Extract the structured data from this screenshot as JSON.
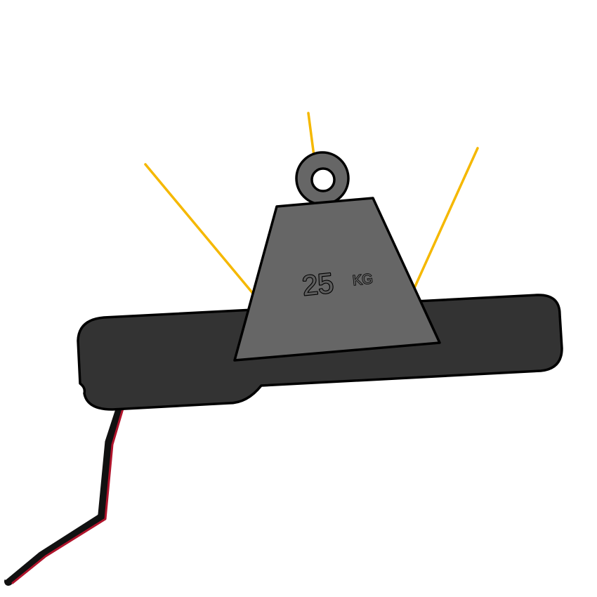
{
  "weight": {
    "number": "25",
    "unit": "KG"
  },
  "colors": {
    "background": "#ffffff",
    "sensor_body": "#333333",
    "weight_body": "#666666",
    "outline": "#000000",
    "force_rays": "#f5b800",
    "wire_black": "#111111",
    "wire_red": "#b0142c",
    "wire_white": "#ffffff"
  }
}
